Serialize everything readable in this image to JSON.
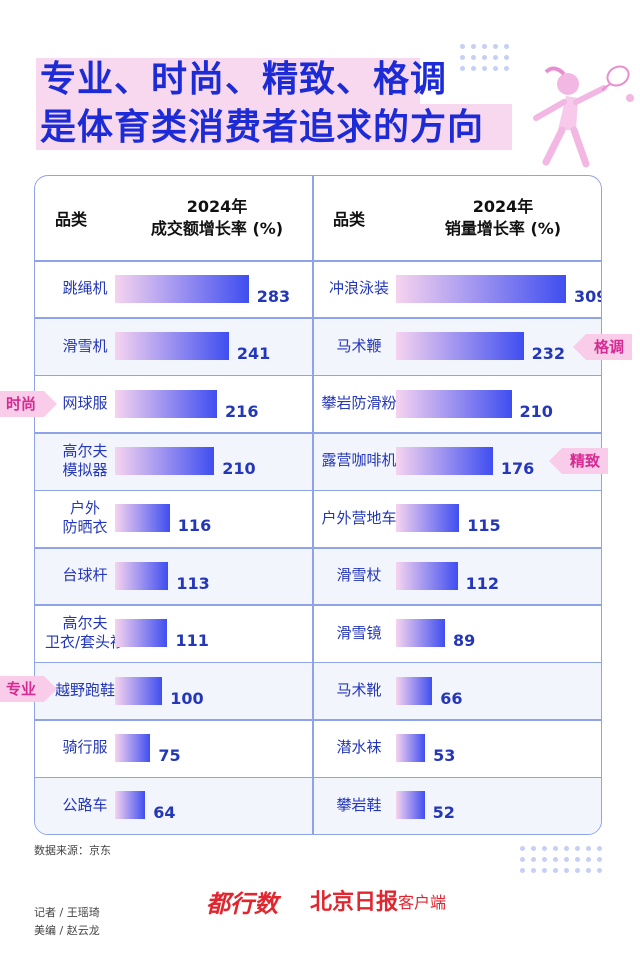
{
  "title": {
    "line1": "专业、时尚、精致、格调",
    "line2": "是体育类消费者追求的方向"
  },
  "left_header": {
    "category": "品类",
    "rate_line1": "2024年",
    "rate_line2": "成交额增长率 (%)"
  },
  "right_header": {
    "category": "品类",
    "rate_line1": "2024年",
    "rate_line2": "销量增长率 (%)"
  },
  "side_tags": {
    "fashion": "时尚",
    "professional": "专业",
    "style": "格调",
    "exquisite": "精致"
  },
  "source": "数据来源：京东",
  "credits": {
    "reporter": "记者 / 王瑶琦",
    "editor": "美编 / 赵云龙"
  },
  "logos": {
    "brand1": "都行数",
    "brand2": "北京日报",
    "brand3": "客户端"
  },
  "colors": {
    "title": "#1d2bd6",
    "bar_start": "#f6d3ef",
    "bar_end": "#3f4ef0",
    "tag_bg": "#f9cdea",
    "tag_text": "#d62b93",
    "border": "#8fa3e8"
  },
  "chart_data": [
    {
      "type": "bar",
      "orientation": "horizontal",
      "ylabel": "2024年成交额增长率 (%)",
      "categories": [
        "跳绳机",
        "滑雪机",
        "网球服",
        "高尔夫模拟器",
        "户外防晒衣",
        "台球杆",
        "高尔夫卫衣/套头衫",
        "越野跑鞋",
        "骑行服",
        "公路车"
      ],
      "category_display": [
        "跳绳机",
        "滑雪机",
        "网球服",
        "高尔夫\n模拟器",
        "户外\n防晒衣",
        "台球杆",
        "高尔夫\n卫衣/套头衫",
        "越野跑鞋",
        "骑行服",
        "公路车"
      ],
      "values": [
        283,
        241,
        216,
        210,
        116,
        113,
        111,
        100,
        75,
        64
      ],
      "xlim": [
        0,
        309
      ]
    },
    {
      "type": "bar",
      "orientation": "horizontal",
      "ylabel": "2024年销量增长率 (%)",
      "categories": [
        "冲浪泳装",
        "马术鞭",
        "攀岩防滑粉",
        "露营咖啡机",
        "户外营地车",
        "滑雪杖",
        "滑雪镜",
        "马术靴",
        "潜水袜",
        "攀岩鞋"
      ],
      "category_display": [
        "冲浪泳装",
        "马术鞭",
        "攀岩防滑粉",
        "露营咖啡机",
        "户外营地车",
        "滑雪杖",
        "滑雪镜",
        "马术靴",
        "潜水袜",
        "攀岩鞋"
      ],
      "values": [
        309,
        232,
        210,
        176,
        115,
        112,
        89,
        66,
        53,
        52
      ],
      "xlim": [
        0,
        309
      ]
    }
  ]
}
